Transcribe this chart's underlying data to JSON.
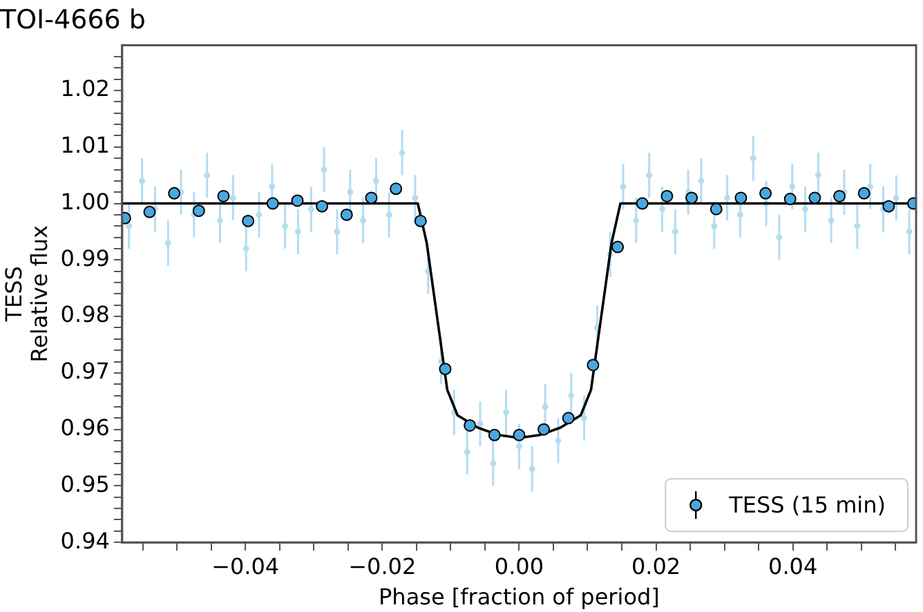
{
  "chart_data": {
    "type": "scatter",
    "title": "TOI-4666 b",
    "xlabel": "Phase [fraction of period]",
    "ylabel": "TESS\nRelative flux",
    "xlim": [
      -0.058,
      0.058
    ],
    "xticks": [
      {
        "value": -0.055,
        "label": null
      },
      {
        "value": -0.05,
        "label": null
      },
      {
        "value": -0.045,
        "label": null
      },
      {
        "value": -0.04,
        "label": "−0.04"
      },
      {
        "value": -0.035,
        "label": null
      },
      {
        "value": -0.03,
        "label": null
      },
      {
        "value": -0.025,
        "label": null
      },
      {
        "value": -0.02,
        "label": "−0.02"
      },
      {
        "value": -0.015,
        "label": null
      },
      {
        "value": -0.01,
        "label": null
      },
      {
        "value": -0.005,
        "label": null
      },
      {
        "value": 0,
        "label": "0.00"
      },
      {
        "value": 0.005,
        "label": null
      },
      {
        "value": 0.01,
        "label": null
      },
      {
        "value": 0.015,
        "label": null
      },
      0.02,
      {
        "value": 0.025,
        "label": null
      },
      {
        "value": 0.03,
        "label": null
      },
      {
        "value": 0.035,
        "label": null
      },
      0.04,
      {
        "value": 0.045,
        "label": null
      },
      {
        "value": 0.05,
        "label": null
      },
      {
        "value": 0.055,
        "label": null
      }
    ],
    "ylim": [
      0.94,
      1.028
    ],
    "yticks": [
      0.94,
      {
        "value": 0.942,
        "label": null
      },
      {
        "value": 0.944,
        "label": null
      },
      {
        "value": 0.946,
        "label": null
      },
      {
        "value": 0.948,
        "label": null
      },
      0.95,
      {
        "value": 0.952,
        "label": null
      },
      {
        "value": 0.954,
        "label": null
      },
      {
        "value": 0.956,
        "label": null
      },
      {
        "value": 0.958,
        "label": null
      },
      0.96,
      {
        "value": 0.962,
        "label": null
      },
      {
        "value": 0.964,
        "label": null
      },
      {
        "value": 0.966,
        "label": null
      },
      {
        "value": 0.968,
        "label": null
      },
      0.97,
      {
        "value": 0.972,
        "label": null
      },
      {
        "value": 0.974,
        "label": null
      },
      {
        "value": 0.976,
        "label": null
      },
      {
        "value": 0.978,
        "label": null
      },
      0.98,
      {
        "value": 0.982,
        "label": null
      },
      {
        "value": 0.984,
        "label": null
      },
      {
        "value": 0.986,
        "label": null
      },
      {
        "value": 0.988,
        "label": null
      },
      0.99,
      {
        "value": 0.992,
        "label": null
      },
      {
        "value": 0.994,
        "label": null
      },
      {
        "value": 0.996,
        "label": null
      },
      {
        "value": 0.998,
        "label": null
      },
      {
        "value": 1.0,
        "label": "1.00"
      },
      {
        "value": 1.002,
        "label": null
      },
      {
        "value": 1.004,
        "label": null
      },
      {
        "value": 1.006,
        "label": null
      },
      {
        "value": 1.008,
        "label": null
      },
      1.01,
      {
        "value": 1.012,
        "label": null
      },
      {
        "value": 1.014,
        "label": null
      },
      {
        "value": 1.016,
        "label": null
      },
      {
        "value": 1.018,
        "label": null
      },
      1.02,
      {
        "value": 1.022,
        "label": null
      },
      {
        "value": 1.024,
        "label": null
      },
      {
        "value": 1.026,
        "label": null
      }
    ],
    "grid": false,
    "legend": "bottom right",
    "marker": "circle",
    "series": [
      {
        "type": "scatter",
        "color": "#b3dcf3",
        "x": [
          -0.057,
          -0.0551,
          -0.0532,
          -0.0513,
          -0.0494,
          -0.0475,
          -0.0456,
          -0.0437,
          -0.0418,
          -0.0399,
          -0.038,
          -0.0361,
          -0.0342,
          -0.0323,
          -0.0304,
          -0.0285,
          -0.0266,
          -0.0247,
          -0.0228,
          -0.0209,
          -0.019,
          -0.0171,
          -0.0152,
          -0.0133,
          -0.0114,
          -0.0095,
          -0.0076,
          -0.0057,
          -0.0038,
          -0.0019,
          0,
          0.0019,
          0.0038,
          0.0057,
          0.0076,
          0.0095,
          0.0114,
          0.0133,
          0.0152,
          0.0171,
          0.019,
          0.0209,
          0.0228,
          0.0247,
          0.0266,
          0.0285,
          0.0304,
          0.0323,
          0.0342,
          0.0361,
          0.038,
          0.0399,
          0.0418,
          0.0437,
          0.0456,
          0.0475,
          0.0494,
          0.0513,
          0.0532,
          0.0551,
          0.057
        ],
        "values": [
          0.996,
          1.004,
          0.999,
          0.993,
          1.002,
          0.998,
          1.005,
          0.997,
          1.001,
          0.992,
          0.998,
          1.003,
          0.996,
          0.995,
          0.999,
          1.006,
          0.995,
          1.002,
          0.997,
          1.004,
          0.998,
          1.009,
          1.001,
          0.988,
          0.972,
          0.963,
          0.956,
          0.961,
          0.954,
          0.963,
          0.957,
          0.953,
          0.964,
          0.958,
          0.966,
          0.962,
          0.978,
          0.991,
          1.003,
          0.997,
          1.005,
          0.999,
          0.995,
          1.002,
          1.004,
          0.996,
          1.001,
          0.998,
          1.008,
          1.0,
          0.994,
          1.003,
          0.999,
          1.005,
          0.997,
          1.002,
          0.996,
          1.003,
          0.999,
          1.001,
          0.995
        ],
        "errors": [
          0.004,
          0.004,
          0.004,
          0.004,
          0.004,
          0.004,
          0.004,
          0.004,
          0.004,
          0.004,
          0.004,
          0.004,
          0.004,
          0.004,
          0.004,
          0.004,
          0.004,
          0.004,
          0.004,
          0.004,
          0.004,
          0.004,
          0.004,
          0.004,
          0.004,
          0.004,
          0.004,
          0.004,
          0.004,
          0.004,
          0.004,
          0.004,
          0.004,
          0.004,
          0.004,
          0.004,
          0.004,
          0.004,
          0.004,
          0.004,
          0.004,
          0.004,
          0.004,
          0.004,
          0.004,
          0.004,
          0.004,
          0.004,
          0.004,
          0.004,
          0.004,
          0.004,
          0.004,
          0.004,
          0.004,
          0.004,
          0.004,
          0.004,
          0.004,
          0.004,
          0.004
        ]
      },
      {
        "type": "line",
        "color": "#000000",
        "marker": "none",
        "x": [
          -0.058,
          -0.0148,
          -0.0135,
          -0.012,
          -0.0105,
          -0.009,
          -0.006,
          -0.003,
          0,
          0.003,
          0.006,
          0.009,
          0.0105,
          0.012,
          0.0135,
          0.0148,
          0.058
        ],
        "values": [
          1.0,
          1.0,
          0.993,
          0.98,
          0.967,
          0.9625,
          0.9603,
          0.959,
          0.9585,
          0.959,
          0.9603,
          0.9625,
          0.967,
          0.98,
          0.993,
          1.0,
          1.0
        ]
      },
      {
        "type": "scatter",
        "name": "TESS (15 min)",
        "color": "#4aa8e0",
        "x": [
          -0.0576,
          -0.054,
          -0.0504,
          -0.0468,
          -0.0432,
          -0.0396,
          -0.036,
          -0.0324,
          -0.0288,
          -0.0252,
          -0.0216,
          -0.018,
          -0.0144,
          -0.0108,
          -0.0072,
          -0.0036,
          0,
          0.0036,
          0.0072,
          0.0108,
          0.0144,
          0.018,
          0.0216,
          0.0252,
          0.0288,
          0.0324,
          0.036,
          0.0396,
          0.0432,
          0.0468,
          0.0504,
          0.054,
          0.0576
        ],
        "values": [
          0.9974,
          0.9985,
          1.0018,
          0.9987,
          1.0013,
          0.9969,
          1.0,
          1.0005,
          0.9995,
          0.998,
          1.001,
          1.0026,
          0.9969,
          0.9707,
          0.9607,
          0.959,
          0.959,
          0.96,
          0.962,
          0.9714,
          0.9923,
          1.0,
          1.0013,
          1.001,
          0.999,
          1.001,
          1.0018,
          1.0008,
          1.001,
          1.0013,
          1.0018,
          0.9995,
          1.0
        ],
        "errors": [
          0.001,
          0.001,
          0.001,
          0.001,
          0.001,
          0.001,
          0.001,
          0.001,
          0.001,
          0.001,
          0.001,
          0.001,
          0.001,
          0.001,
          0.001,
          0.001,
          0.001,
          0.001,
          0.001,
          0.001,
          0.001,
          0.001,
          0.001,
          0.001,
          0.001,
          0.001,
          0.001,
          0.001,
          0.001,
          0.001,
          0.001,
          0.001,
          0.001
        ]
      }
    ]
  }
}
